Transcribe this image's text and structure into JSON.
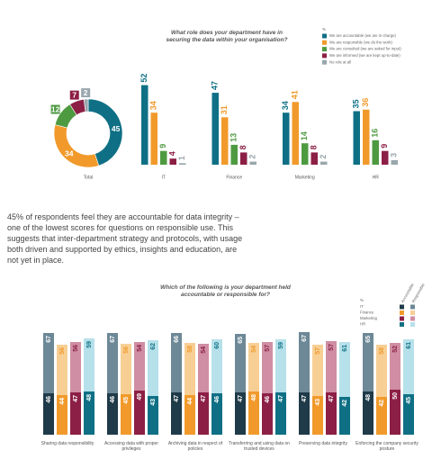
{
  "chart_data": [
    {
      "type": "bar",
      "first_category_as": "donut",
      "title": "What role does your department have in securing the data within your organisation?",
      "legend_title": "%",
      "categories": [
        "Total",
        "IT",
        "Finance",
        "Marketing",
        "HR"
      ],
      "series": [
        {
          "name": "We are accountable (we are in charge)",
          "color": "#0f7085",
          "values": [
            45,
            52,
            47,
            34,
            35
          ]
        },
        {
          "name": "We are responsible (we do the work)",
          "color": "#f19a2b",
          "values": [
            34,
            34,
            31,
            41,
            36
          ]
        },
        {
          "name": "We are consulted (we are asked for input)",
          "color": "#4e9a41",
          "values": [
            12,
            9,
            13,
            14,
            16
          ]
        },
        {
          "name": "We are informed (we are kept up-to-date)",
          "color": "#8c1f45",
          "values": [
            7,
            4,
            8,
            8,
            9
          ]
        },
        {
          "name": "No role at all",
          "color": "#9aa7ad",
          "values": [
            2,
            1,
            2,
            2,
            3
          ]
        }
      ]
    },
    {
      "type": "stacked-bar",
      "title": "Which of the following is your department held accountable or responsible for?",
      "legend_title": "%",
      "stack_names": [
        "Accountable",
        "Responsible"
      ],
      "categories": [
        "Sharing data responsibility",
        "Accessing data with proper privileges",
        "Archiving data in respect of policies",
        "Transferring and using data on trusted devices",
        "Preserving data integrity",
        "Enforcing the company security posture"
      ],
      "series": [
        {
          "name": "IT",
          "color": "#1f3a48",
          "light_color": "#6d8896",
          "accountable": [
            46,
            46,
            47,
            47,
            47,
            48
          ],
          "responsible": [
            67,
            67,
            66,
            65,
            67,
            65
          ]
        },
        {
          "name": "Finance",
          "color": "#f19a2b",
          "light_color": "#f7cf95",
          "accountable": [
            44,
            45,
            44,
            48,
            43,
            42
          ],
          "responsible": [
            56,
            56,
            58,
            54,
            57,
            58
          ]
        },
        {
          "name": "Marketing",
          "color": "#8c1f45",
          "light_color": "#cf8ea3",
          "accountable": [
            47,
            49,
            47,
            46,
            47,
            50
          ],
          "responsible": [
            56,
            54,
            54,
            57,
            57,
            52
          ]
        },
        {
          "name": "HR",
          "color": "#0f7085",
          "light_color": "#b6e1ea",
          "accountable": [
            48,
            43,
            46,
            47,
            42,
            45
          ],
          "responsible": [
            59,
            62,
            60,
            59,
            61,
            61
          ]
        }
      ]
    }
  ],
  "text": "45% of respondents feel they are accountable for data integrity – one of the lowest scores for questions on responsible use. This suggests that inter-department strategy and protocols, with usage both driven and supported by ethics, insights and education, are not yet in place."
}
